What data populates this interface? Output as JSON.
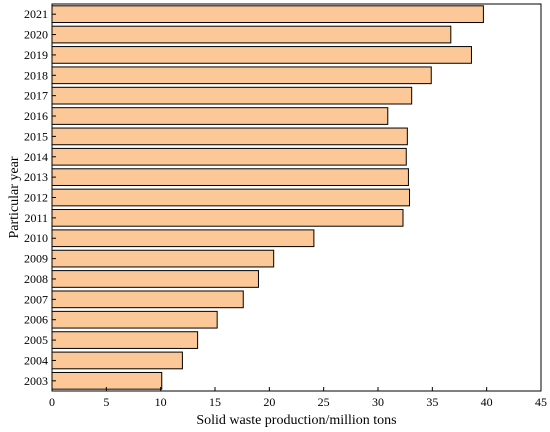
{
  "chart_data": {
    "type": "bar",
    "orientation": "horizontal",
    "title": "",
    "xlabel": "Solid waste production/million tons",
    "ylabel": "Particular year",
    "xlim": [
      0,
      45
    ],
    "xticks": [
      0,
      5,
      10,
      15,
      20,
      25,
      30,
      35,
      40,
      45
    ],
    "bar_color": "#FDC898",
    "grid": false,
    "categories": [
      "2021",
      "2020",
      "2019",
      "2018",
      "2017",
      "2016",
      "2015",
      "2014",
      "2013",
      "2012",
      "2011",
      "2010",
      "2009",
      "2008",
      "2007",
      "2006",
      "2005",
      "2004",
      "2003"
    ],
    "values": [
      39.7,
      36.7,
      38.6,
      34.9,
      33.1,
      30.9,
      32.7,
      32.6,
      32.8,
      32.9,
      32.3,
      24.1,
      20.4,
      19.0,
      17.6,
      15.2,
      13.4,
      12.0,
      10.1
    ]
  }
}
